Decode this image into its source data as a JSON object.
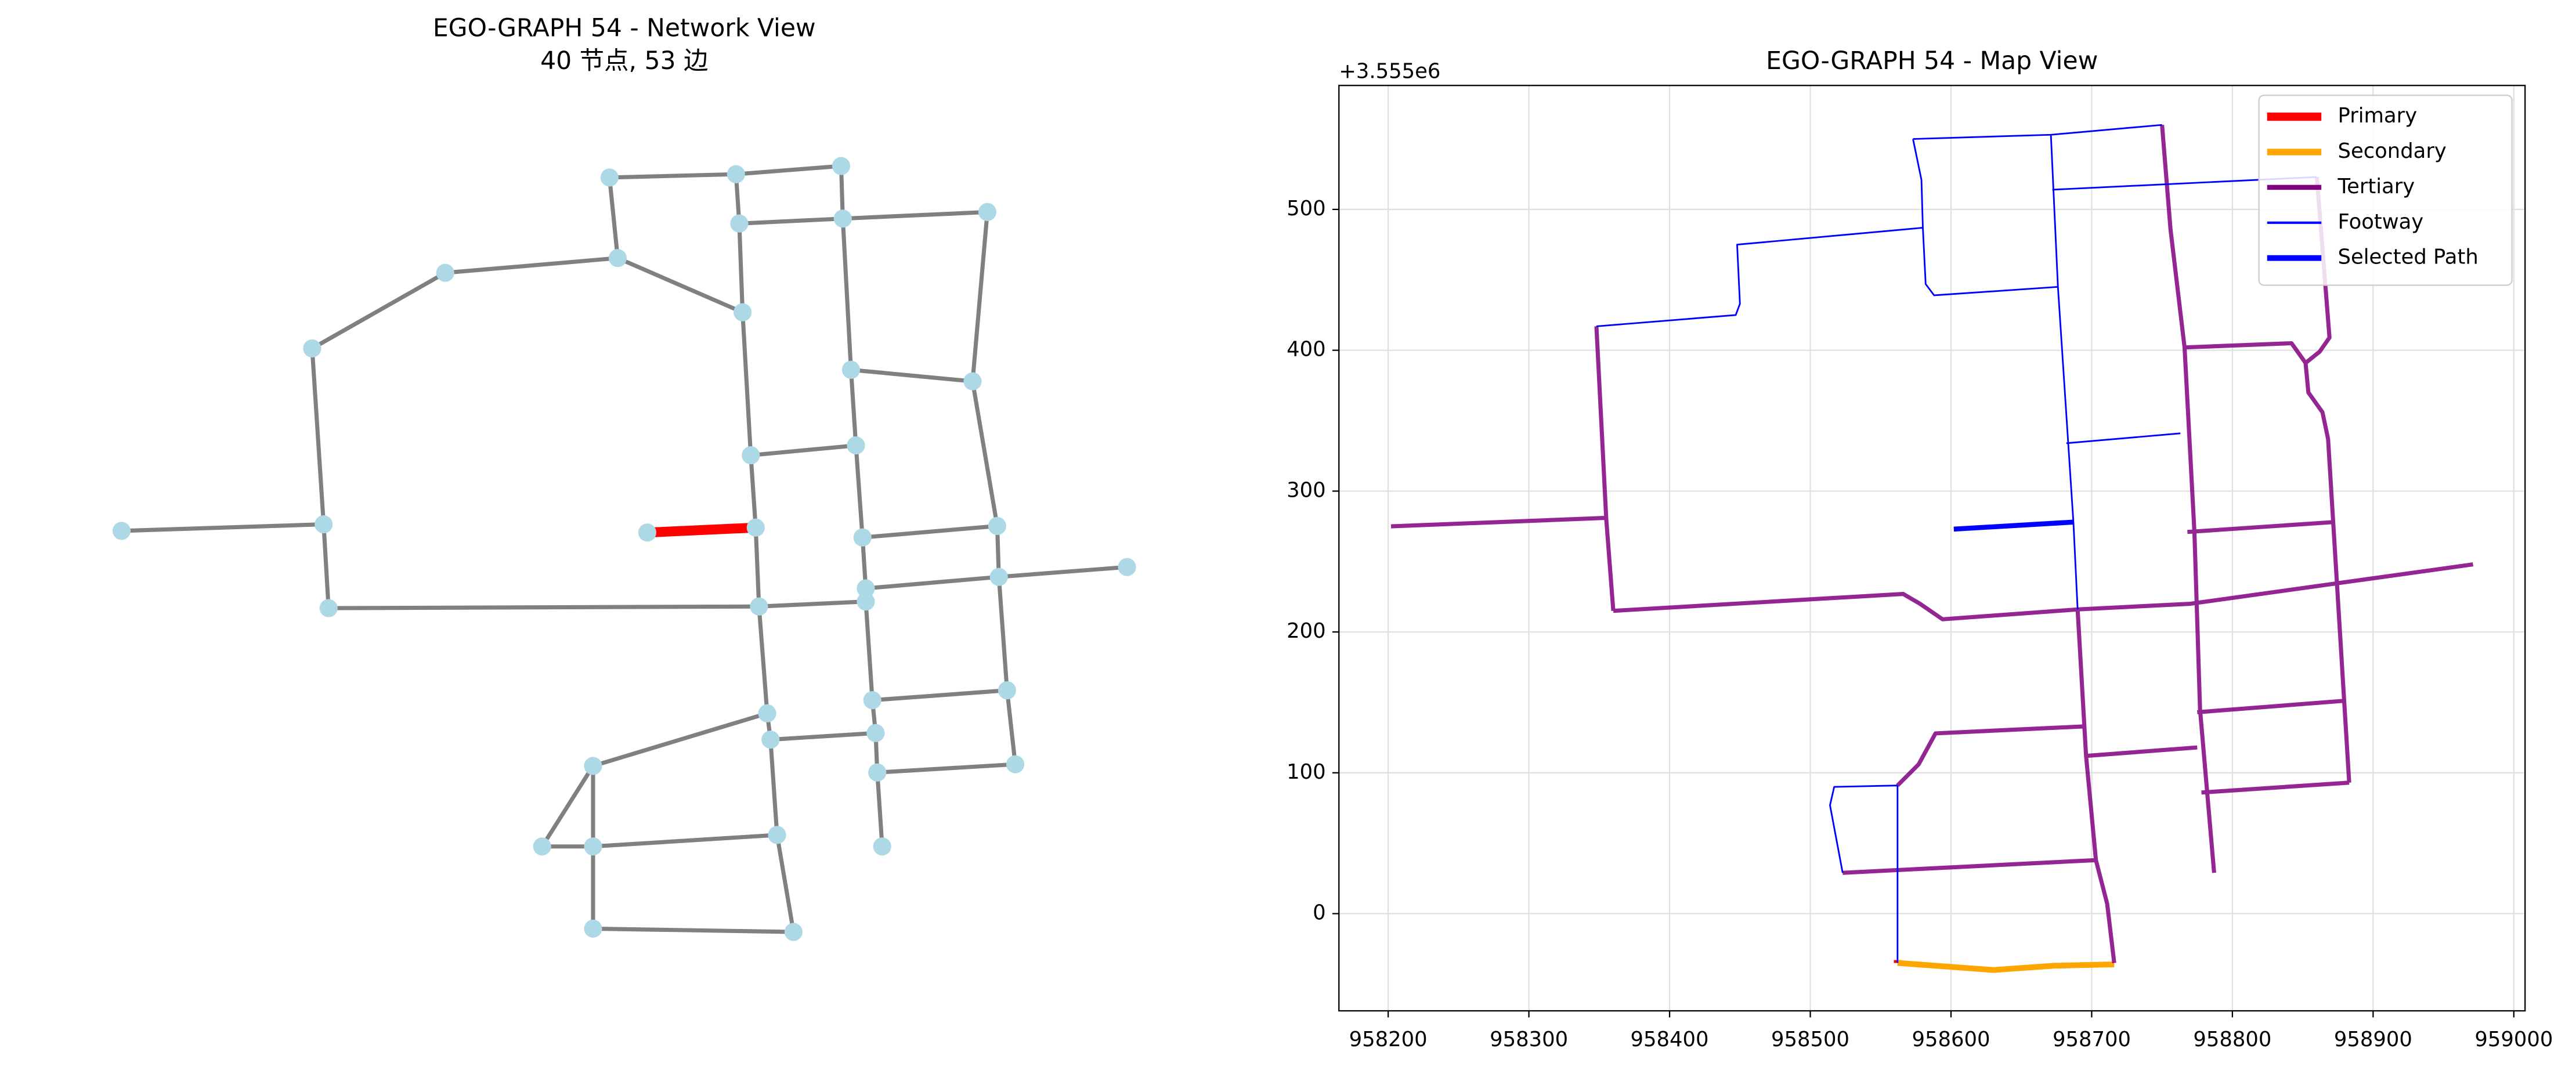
{
  "chart_data": [
    {
      "type": "network",
      "title": "EGO-GRAPH 54 - Network View",
      "subtitle": "40 节点, 53 边"
    },
    {
      "type": "line",
      "title": "EGO-GRAPH 54 - Map View",
      "y_offset_label": "+3.555e6",
      "xlim": [
        958165,
        959008
      ],
      "ylim": [
        -69,
        588
      ],
      "xticks": [
        958200,
        958300,
        958400,
        958500,
        958600,
        958700,
        958800,
        958900,
        959000
      ],
      "yticks": [
        0,
        100,
        200,
        300,
        400,
        500
      ],
      "grid": true,
      "legend": "upper right",
      "series": [
        {
          "name": "Primary",
          "color": "#ff0000",
          "linewidth": 4.5,
          "x": [
            958562,
            958562
          ],
          "values": [
            -35,
            -33
          ]
        },
        {
          "name": "Secondary",
          "color": "#ffa500",
          "linewidth": 3.5,
          "x": [
            958562,
            958589,
            958630,
            958673,
            958716
          ],
          "values": [
            -35,
            -37,
            -40,
            -37,
            -36
          ]
        },
        {
          "name": "Tertiary",
          "color": "#800080",
          "linewidth": 2.5,
          "x": [
            958348,
            958355,
            958360,
            null,
            958202,
            958355,
            null,
            958360,
            958566,
            958578,
            958594,
            958690,
            958770,
            958971,
            null,
            958750,
            958756,
            958766,
            958773,
            958777,
            958787,
            null,
            958690,
            958696,
            958703,
            958711,
            958716,
            null,
            958523,
            958703,
            null,
            958562,
            958577,
            958589,
            958696,
            null,
            958696,
            958775,
            null,
            958775,
            958878,
            null,
            958778,
            958883,
            null,
            958768,
            958872,
            null,
            958860,
            958869,
            958862,
            958852,
            958854,
            958864,
            958868,
            958883,
            null,
            958766,
            958842,
            958852
          ],
          "values": [
            417,
            280,
            215,
            null,
            275,
            281,
            null,
            215,
            227,
            220,
            209,
            216,
            220,
            248,
            null,
            560,
            486,
            402,
            271,
            145,
            29,
            null,
            216,
            112,
            38,
            7,
            -35,
            null,
            29,
            38,
            null,
            91,
            106,
            128,
            133,
            null,
            112,
            118,
            null,
            143,
            151,
            null,
            86,
            93,
            null,
            271,
            278,
            null,
            523,
            409,
            399,
            391,
            370,
            356,
            337,
            93,
            null,
            402,
            405,
            391
          ]
        },
        {
          "name": "Footway",
          "color": "#0000ff",
          "linewidth": 1,
          "x": [
            958348,
            958447,
            958450,
            958448,
            958580,
            null,
            958573,
            958579,
            958580,
            958582,
            958588,
            958676,
            null,
            958573,
            958671,
            958750,
            null,
            958671,
            958676,
            958687,
            958690,
            null,
            958672,
            958860,
            null,
            958682,
            958763,
            null,
            958562,
            958517,
            958514,
            958523,
            null,
            958562,
            958562
          ],
          "values": [
            417,
            425,
            433,
            475,
            487,
            null,
            550,
            521,
            487,
            447,
            439,
            445,
            null,
            550,
            553,
            560,
            null,
            553,
            445,
            278,
            216,
            null,
            514,
            523,
            null,
            334,
            341,
            null,
            91,
            90,
            77,
            29,
            null,
            91,
            -35
          ]
        },
        {
          "name": "Selected Path",
          "color": "#0000ff",
          "linewidth": 3,
          "x": [
            958602,
            958687
          ],
          "values": [
            273,
            278
          ]
        }
      ]
    }
  ]
}
